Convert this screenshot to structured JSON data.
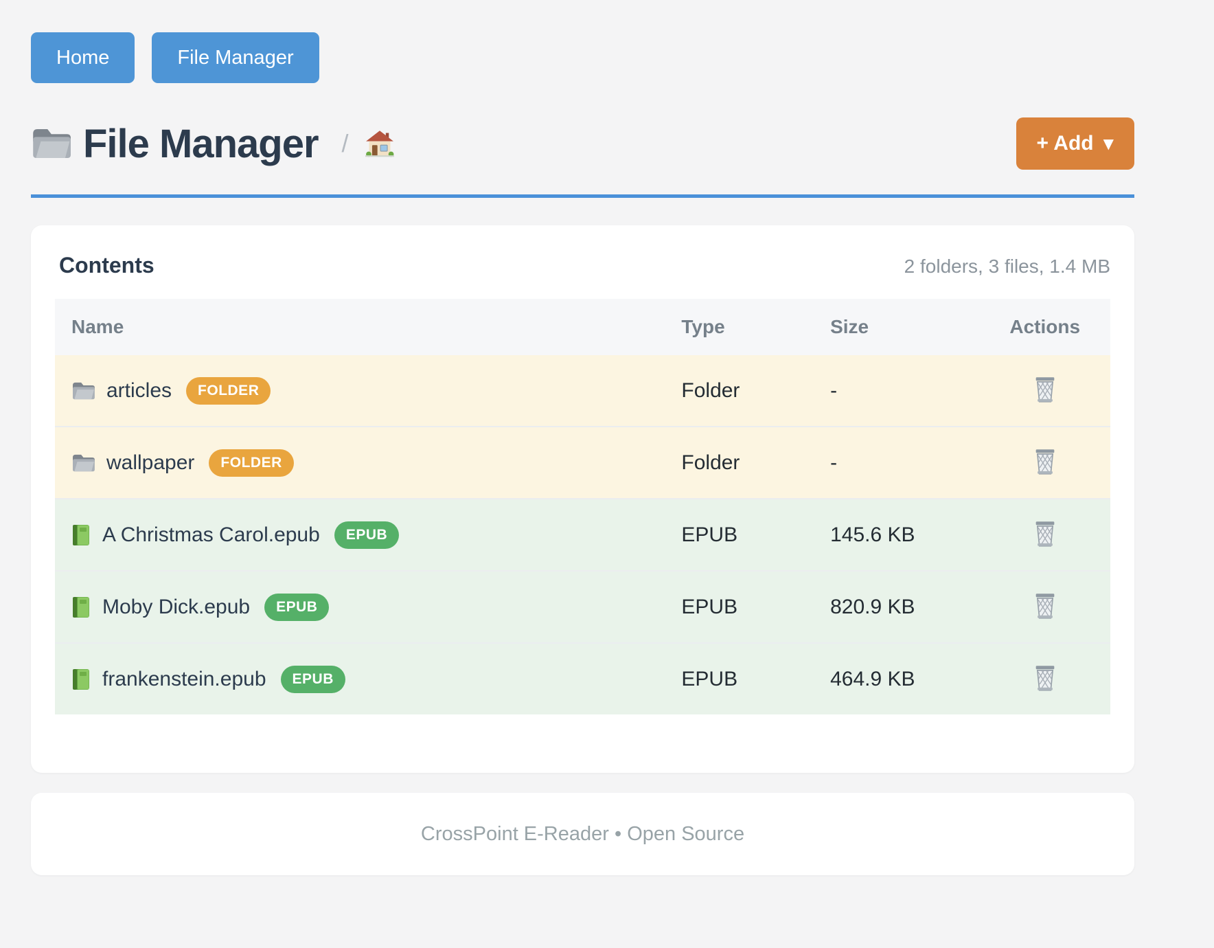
{
  "colors": {
    "accent_blue": "#4a90d9",
    "nav_button_blue": "#4e95d6",
    "add_button_orange": "#d9823b",
    "folder_badge_orange": "#e9a53e",
    "epub_badge_green": "#55b068",
    "folder_row_bg": "#fcf5e1",
    "epub_row_bg": "#e9f3ea"
  },
  "nav": {
    "buttons": [
      {
        "label": "Home"
      },
      {
        "label": "File Manager"
      }
    ]
  },
  "header": {
    "title_icon": "gray-folder",
    "title": "File Manager",
    "breadcrumb_separator": "/",
    "breadcrumb_home_icon": "house",
    "add_button_label": "+ Add",
    "add_button_caret": "▼"
  },
  "contents": {
    "title": "Contents",
    "summary": "2 folders, 3 files, 1.4 MB",
    "columns": [
      "Name",
      "Type",
      "Size",
      "Actions"
    ],
    "action_icon": "wastebasket",
    "rows": [
      {
        "icon": "folder",
        "name": "articles",
        "badge": "FOLDER",
        "type": "Folder",
        "size": "-",
        "kind": "folder"
      },
      {
        "icon": "folder",
        "name": "wallpaper",
        "badge": "FOLDER",
        "type": "Folder",
        "size": "-",
        "kind": "folder"
      },
      {
        "icon": "book",
        "name": "A Christmas Carol.epub",
        "badge": "EPUB",
        "type": "EPUB",
        "size": "145.6 KB",
        "kind": "epub"
      },
      {
        "icon": "book",
        "name": "Moby Dick.epub",
        "badge": "EPUB",
        "type": "EPUB",
        "size": "820.9 KB",
        "kind": "epub"
      },
      {
        "icon": "book",
        "name": "frankenstein.epub",
        "badge": "EPUB",
        "type": "EPUB",
        "size": "464.9 KB",
        "kind": "epub"
      }
    ]
  },
  "footer": {
    "text": "CrossPoint E-Reader • Open Source"
  }
}
